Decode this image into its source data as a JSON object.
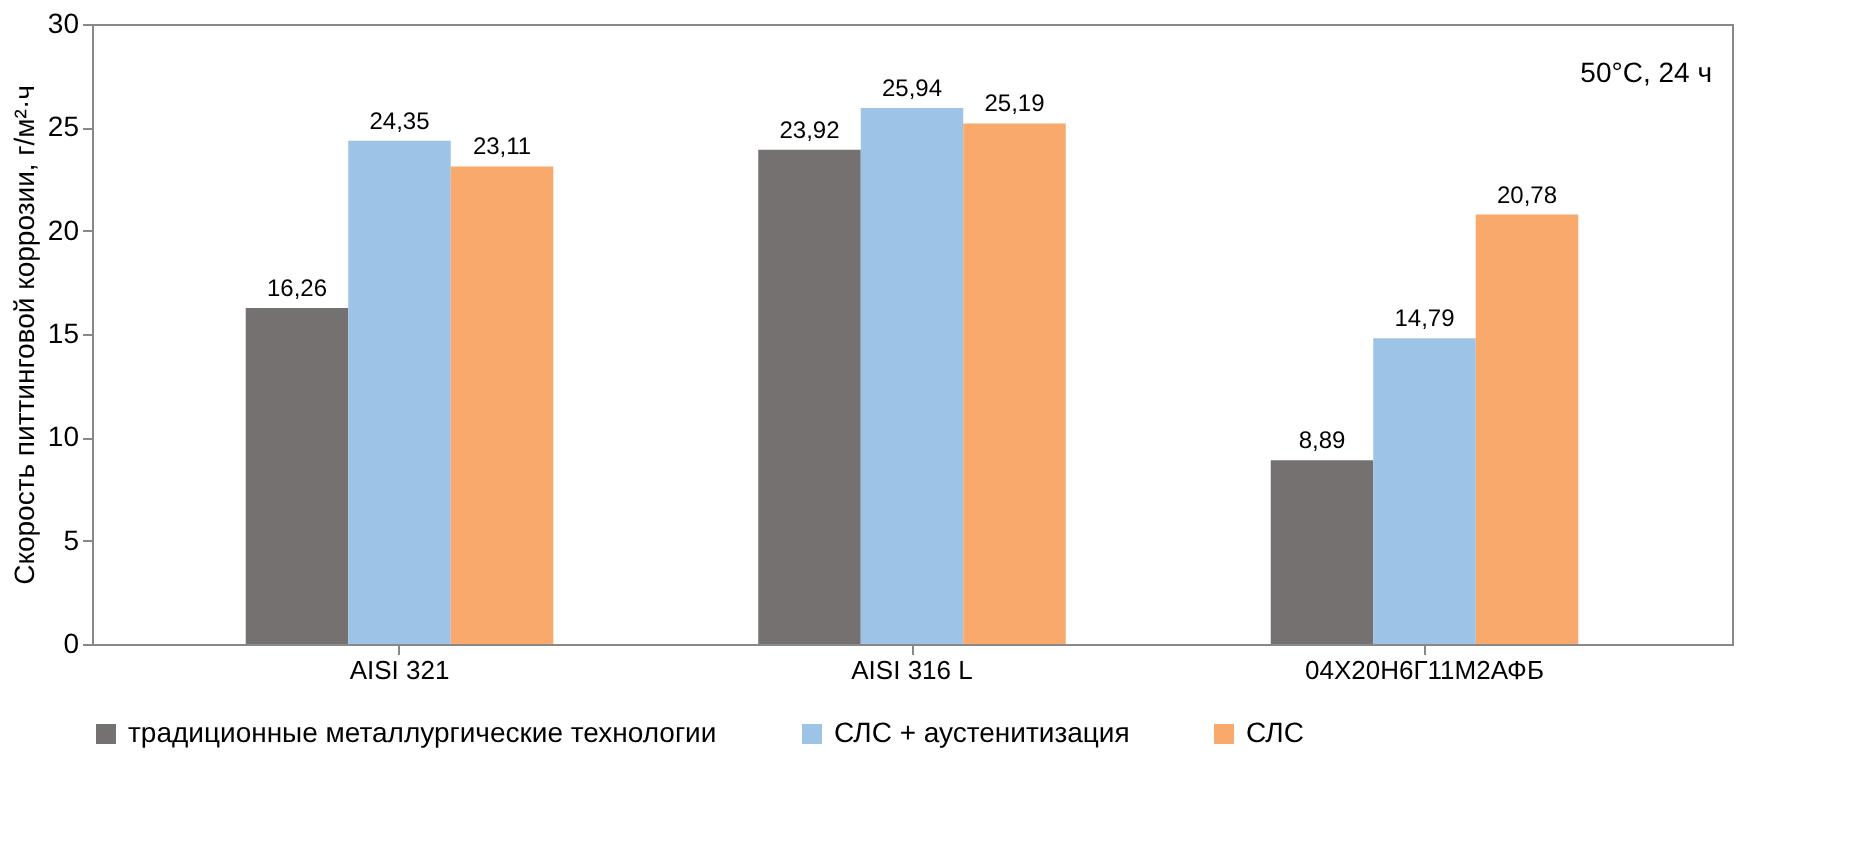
{
  "chart_data": {
    "type": "bar",
    "ylabel": "Скорость питтинговой коррозии, г/м²·ч",
    "categories": [
      "AISI 321",
      "AISI 316 L",
      "04Х20Н6Г11М2АФБ"
    ],
    "series": [
      {
        "name": "традиционные металлургические технологии",
        "color": "#767171",
        "values": [
          16.26,
          23.92,
          8.89
        ],
        "value_labels": [
          "16,26",
          "23,92",
          "8,89"
        ]
      },
      {
        "name": "СЛС + аустенитизация",
        "color": "#9dc3e6",
        "values": [
          24.35,
          25.94,
          14.79
        ],
        "value_labels": [
          "24,35",
          "25,94",
          "14,79"
        ]
      },
      {
        "name": "СЛС",
        "color": "#f8a96b",
        "values": [
          23.11,
          25.19,
          20.78
        ],
        "value_labels": [
          "23,11",
          "25,19",
          "20,78"
        ]
      }
    ],
    "ylim": [
      0,
      30
    ],
    "yticks": [
      0,
      5,
      10,
      15,
      20,
      25,
      30
    ],
    "grid": false,
    "legend": "bottom",
    "annotations": [
      "50°C, 24 ч"
    ]
  }
}
